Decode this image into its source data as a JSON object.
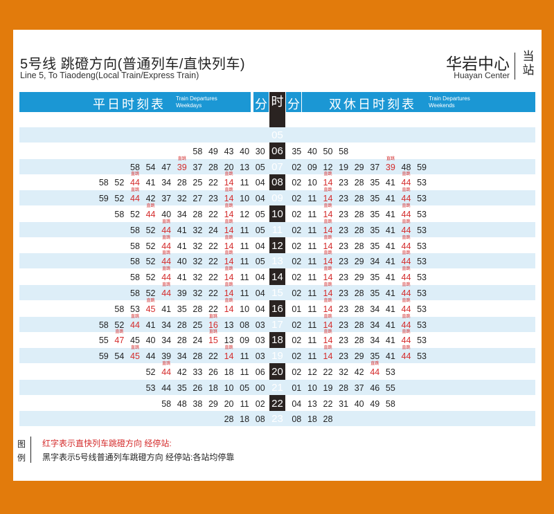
{
  "header": {
    "title_cn": "5号线 跳磴方向(普通列车/直快列车)",
    "title_en": "Line 5, To Tiaodeng(Local Train/Express Train)",
    "station_cn": "华岩中心",
    "station_en": "Huayan Center",
    "station_dir": "当站"
  },
  "columns": {
    "weekday_cn": "平日时刻表",
    "weekday_en": "Train Departures Weekdays",
    "weekend_cn": "双休日时刻表",
    "weekend_en": "Train Departures Weekends",
    "minute": "分",
    "hour": "时"
  },
  "express_tag": "直跳",
  "colors": {
    "accent": "#1b97d4",
    "express": "#d42a2a",
    "hour_bg": "#2a2321",
    "frame": "#e27b0c",
    "row_shade": "#ddeef8"
  },
  "rows": [
    {
      "hour": "05",
      "weekday": [],
      "weekend": []
    },
    {
      "hour": "06",
      "weekday": [
        "58",
        "49",
        "43",
        "40",
        "30"
      ],
      "weekend": [
        "35",
        "40",
        "50",
        "58"
      ]
    },
    {
      "hour": "07",
      "weekday": [
        "58",
        "54",
        "47",
        "*39",
        "37",
        "28",
        "20",
        "13",
        "05"
      ],
      "weekend": [
        "02",
        "09",
        "12",
        "19",
        "29",
        "37",
        "*39",
        "48",
        "59"
      ]
    },
    {
      "hour": "08",
      "weekday": [
        "58",
        "52",
        "*44",
        "41",
        "34",
        "28",
        "25",
        "22",
        "*14",
        "11",
        "04"
      ],
      "weekend": [
        "02",
        "10",
        "*14",
        "23",
        "28",
        "35",
        "41",
        "*44",
        "53"
      ]
    },
    {
      "hour": "09",
      "weekday": [
        "59",
        "52",
        "*44",
        "42",
        "37",
        "32",
        "27",
        "23",
        "*14",
        "10",
        "04"
      ],
      "weekend": [
        "02",
        "11",
        "*14",
        "23",
        "28",
        "35",
        "41",
        "*44",
        "53"
      ]
    },
    {
      "hour": "10",
      "weekday": [
        "58",
        "52",
        "*44",
        "40",
        "34",
        "28",
        "22",
        "*14",
        "12",
        "05"
      ],
      "weekend": [
        "02",
        "11",
        "*14",
        "23",
        "28",
        "35",
        "41",
        "*44",
        "53"
      ]
    },
    {
      "hour": "11",
      "weekday": [
        "58",
        "52",
        "*44",
        "41",
        "32",
        "24",
        "*14",
        "11",
        "05"
      ],
      "weekend": [
        "02",
        "11",
        "*14",
        "23",
        "28",
        "35",
        "41",
        "*44",
        "53"
      ]
    },
    {
      "hour": "12",
      "weekday": [
        "58",
        "52",
        "*44",
        "41",
        "32",
        "22",
        "*14",
        "11",
        "04"
      ],
      "weekend": [
        "02",
        "11",
        "*14",
        "23",
        "28",
        "35",
        "41",
        "*44",
        "53"
      ]
    },
    {
      "hour": "13",
      "weekday": [
        "58",
        "52",
        "*44",
        "40",
        "32",
        "22",
        "*14",
        "11",
        "05"
      ],
      "weekend": [
        "02",
        "11",
        "*14",
        "23",
        "29",
        "34",
        "41",
        "*44",
        "53"
      ]
    },
    {
      "hour": "14",
      "weekday": [
        "58",
        "52",
        "*44",
        "41",
        "32",
        "22",
        "*14",
        "11",
        "04"
      ],
      "weekend": [
        "02",
        "11",
        "*14",
        "23",
        "29",
        "35",
        "41",
        "*44",
        "53"
      ]
    },
    {
      "hour": "15",
      "weekday": [
        "58",
        "52",
        "*44",
        "39",
        "32",
        "22",
        "*14",
        "11",
        "04"
      ],
      "weekend": [
        "02",
        "11",
        "*14",
        "23",
        "28",
        "35",
        "41",
        "*44",
        "53"
      ]
    },
    {
      "hour": "16",
      "weekday": [
        "58",
        "53",
        "*45",
        "41",
        "35",
        "28",
        "22",
        "*14",
        "10",
        "04"
      ],
      "weekend": [
        "01",
        "11",
        "*14",
        "23",
        "28",
        "34",
        "41",
        "*44",
        "53"
      ]
    },
    {
      "hour": "17",
      "weekday": [
        "58",
        "52",
        "*44",
        "41",
        "34",
        "28",
        "25",
        "*16",
        "13",
        "08",
        "03"
      ],
      "weekend": [
        "02",
        "11",
        "*14",
        "23",
        "28",
        "34",
        "41",
        "*44",
        "53"
      ]
    },
    {
      "hour": "18",
      "weekday": [
        "55",
        "*47",
        "45",
        "40",
        "34",
        "28",
        "24",
        "*15",
        "13",
        "09",
        "03"
      ],
      "weekend": [
        "02",
        "11",
        "*14",
        "23",
        "28",
        "34",
        "41",
        "*44",
        "53"
      ]
    },
    {
      "hour": "19",
      "weekday": [
        "59",
        "54",
        "*45",
        "44",
        "39",
        "34",
        "28",
        "22",
        "*14",
        "11",
        "03"
      ],
      "weekend": [
        "02",
        "11",
        "*14",
        "23",
        "29",
        "35",
        "41",
        "*44",
        "53"
      ]
    },
    {
      "hour": "20",
      "weekday": [
        "52",
        "*44",
        "42",
        "33",
        "26",
        "18",
        "11",
        "06"
      ],
      "weekend": [
        "02",
        "12",
        "22",
        "32",
        "42",
        "*44",
        "53"
      ]
    },
    {
      "hour": "21",
      "weekday": [
        "53",
        "44",
        "35",
        "26",
        "18",
        "10",
        "05",
        "00"
      ],
      "weekend": [
        "01",
        "10",
        "19",
        "28",
        "37",
        "46",
        "55"
      ]
    },
    {
      "hour": "22",
      "weekday": [
        "58",
        "48",
        "38",
        "29",
        "20",
        "11",
        "02"
      ],
      "weekend": [
        "04",
        "13",
        "22",
        "31",
        "40",
        "49",
        "58"
      ]
    },
    {
      "hour": "23",
      "weekday": [
        "28",
        "18",
        "08"
      ],
      "weekend": [
        "08",
        "18",
        "28"
      ]
    }
  ],
  "legend": {
    "label": "图例",
    "red_text": "红字表示直快列车跳磴方向  经停站:",
    "black_text": "黑字表示5号线普通列车跳磴方向  经停站:各站均停靠"
  }
}
